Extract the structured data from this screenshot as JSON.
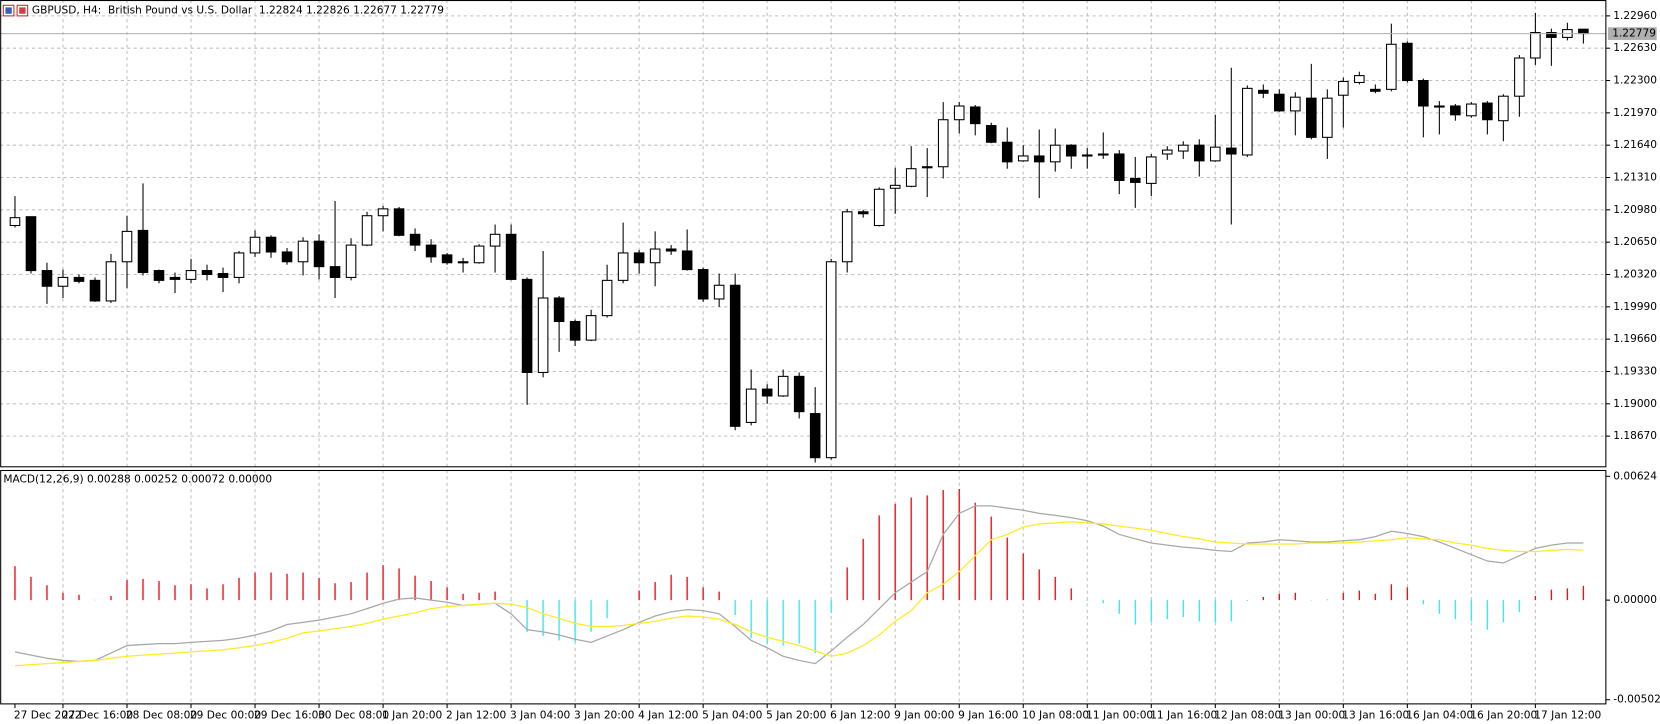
{
  "chart_data": [
    {
      "type": "candlestick",
      "title": "GBPUSD, H4:  British Pound vs U.S. Dollar  1.22824 1.22826 1.22677 1.22779",
      "categories": [
        "27 Dec 2022",
        null,
        null,
        "27 Dec 16:00",
        null,
        null,
        null,
        "28 Dec 08:00",
        null,
        null,
        null,
        "29 Dec 00:00",
        null,
        null,
        null,
        "29 Dec 16:00",
        null,
        null,
        null,
        "30 Dec 08:00",
        null,
        null,
        null,
        "1 Jan 20:00",
        null,
        null,
        null,
        "2 Jan 12:00",
        null,
        null,
        null,
        "3 Jan 04:00",
        null,
        null,
        null,
        "3 Jan 20:00",
        null,
        null,
        null,
        "4 Jan 12:00",
        null,
        null,
        null,
        "5 Jan 04:00",
        null,
        null,
        null,
        "5 Jan 20:00",
        null,
        null,
        null,
        "6 Jan 12:00",
        null,
        null,
        null,
        "9 Jan 00:00",
        null,
        null,
        null,
        "9 Jan 16:00",
        null,
        null,
        null,
        "10 Jan 08:00",
        null,
        null,
        null,
        "11 Jan 00:00",
        null,
        null,
        null,
        "11 Jan 16:00",
        null,
        null,
        null,
        "12 Jan 08:00",
        null,
        null,
        null,
        "13 Jan 00:00",
        null,
        null,
        null,
        "13 Jan 16:00",
        null,
        null,
        null,
        "16 Jan 04:00",
        null,
        null,
        null,
        "16 Jan 20:00",
        null,
        null,
        null,
        "17 Jan 12:00",
        null,
        null,
        null
      ],
      "open": [
        1.2082,
        1.2091,
        1.2036,
        1.202,
        1.2029,
        1.2026,
        1.2005,
        1.2045,
        1.2077,
        1.2036,
        1.2029,
        1.2027,
        1.2036,
        1.2033,
        1.2029,
        1.2054,
        1.207,
        1.2055,
        1.2045,
        1.2066,
        1.204,
        1.2029,
        1.2062,
        1.2092,
        1.2099,
        1.2073,
        1.2062,
        1.2052,
        1.2045,
        1.2044,
        1.2061,
        1.2073,
        1.2027,
        1.1932,
        1.2008,
        1.1984,
        1.1965,
        1.199,
        1.2026,
        1.2054,
        1.2044,
        1.2058,
        1.2056,
        1.2037,
        1.2007,
        1.2021,
        1.1881,
        1.1915,
        1.1908,
        1.1928,
        1.189,
        1.1845,
        1.2045,
        1.2096,
        1.2082,
        1.212,
        1.2122,
        1.2141,
        1.2142,
        1.219,
        1.2203,
        1.2184,
        1.2167,
        1.2148,
        1.2153,
        1.2147,
        1.2164,
        1.2154,
        1.2155,
        1.2155,
        1.213,
        1.2125,
        1.2155,
        1.2158,
        1.2164,
        1.2148,
        1.2161,
        1.2154,
        1.222,
        1.2216,
        1.2199,
        1.2212,
        1.2172,
        1.2215,
        1.2228,
        1.2221,
        1.2221,
        1.2268,
        1.223,
        1.2204,
        1.2204,
        1.2194,
        1.2207,
        1.2189,
        1.2214,
        1.2253,
        1.2279,
        1.2274,
        1.22824
      ],
      "high": [
        1.2112,
        1.2091,
        1.2044,
        1.2037,
        1.2032,
        1.2029,
        1.2053,
        1.2092,
        1.2125,
        1.2037,
        1.2034,
        1.2048,
        1.2042,
        1.2039,
        1.2056,
        1.2077,
        1.2072,
        1.2059,
        1.207,
        1.2073,
        1.2107,
        1.2069,
        1.2096,
        1.2102,
        1.2101,
        1.2079,
        1.2068,
        1.2054,
        1.2049,
        1.2063,
        1.2083,
        1.2083,
        1.2029,
        1.2056,
        1.201,
        1.1986,
        1.1996,
        1.2042,
        1.2085,
        1.2057,
        1.2076,
        1.2062,
        1.2078,
        1.2039,
        1.2033,
        1.2033,
        1.1935,
        1.192,
        1.1935,
        1.1932,
        1.1917,
        1.2048,
        1.2099,
        1.2098,
        1.2121,
        1.2141,
        1.2163,
        1.2161,
        1.2208,
        1.2208,
        1.2205,
        1.2187,
        1.2182,
        1.2164,
        1.218,
        1.2181,
        1.2165,
        1.2161,
        1.2177,
        1.2159,
        1.2152,
        1.2155,
        1.2163,
        1.2168,
        1.217,
        1.2195,
        1.2243,
        1.2225,
        1.2226,
        1.2221,
        1.2218,
        1.2247,
        1.2221,
        1.2233,
        1.2239,
        1.2226,
        1.2288,
        1.227,
        1.2232,
        1.2209,
        1.2206,
        1.2208,
        1.2209,
        1.2216,
        1.2256,
        1.2299,
        1.2283,
        1.2289,
        1.22826
      ],
      "low": [
        1.208,
        1.2033,
        1.2002,
        1.2008,
        1.2023,
        1.2004,
        1.2003,
        1.2018,
        1.2031,
        1.2023,
        1.2013,
        1.2023,
        1.2026,
        1.2014,
        1.2023,
        1.205,
        1.2049,
        1.2042,
        1.2031,
        1.2027,
        1.2008,
        1.2026,
        1.2061,
        1.2076,
        1.2071,
        1.2056,
        1.2044,
        1.2042,
        1.2034,
        1.2043,
        1.2034,
        1.2026,
        1.1899,
        1.1927,
        1.1953,
        1.1959,
        1.1964,
        1.1988,
        1.2023,
        1.2033,
        1.202,
        1.2052,
        1.2036,
        1.2004,
        1.1999,
        1.1873,
        1.1878,
        1.19,
        1.1907,
        1.1885,
        1.184,
        1.1843,
        1.2034,
        1.209,
        1.2081,
        1.2094,
        1.2121,
        1.2111,
        1.213,
        1.2176,
        1.2174,
        1.2166,
        1.214,
        1.2147,
        1.211,
        1.2137,
        1.214,
        1.214,
        1.215,
        1.2114,
        1.21,
        1.2112,
        1.2149,
        1.215,
        1.2132,
        1.2147,
        1.2083,
        1.2152,
        1.2212,
        1.2198,
        1.2174,
        1.217,
        1.215,
        1.2182,
        1.2226,
        1.2217,
        1.2219,
        1.2228,
        1.2172,
        1.2175,
        1.2189,
        1.2192,
        1.2175,
        1.2168,
        1.2193,
        1.2246,
        1.2245,
        1.2271,
        1.22677
      ],
      "close": [
        1.209,
        1.2036,
        1.202,
        1.2029,
        1.2025,
        1.2005,
        1.2045,
        1.2076,
        1.2034,
        1.2026,
        1.2027,
        1.2036,
        1.2032,
        1.2029,
        1.2054,
        1.207,
        1.2055,
        1.2045,
        1.2066,
        1.204,
        1.2029,
        1.2062,
        1.2092,
        1.2099,
        1.2072,
        1.2062,
        1.205,
        1.2044,
        1.2044,
        1.2061,
        1.2073,
        1.2027,
        1.1932,
        1.2008,
        1.1984,
        1.1965,
        1.199,
        1.2026,
        1.2054,
        1.2044,
        1.2058,
        1.2056,
        1.2037,
        1.2007,
        1.2021,
        1.1877,
        1.1915,
        1.1908,
        1.1928,
        1.1892,
        1.1845,
        1.2045,
        1.2096,
        1.2094,
        1.2119,
        1.2123,
        1.214,
        1.2142,
        1.219,
        1.2204,
        1.2186,
        1.2167,
        1.2147,
        1.2153,
        1.2147,
        1.2164,
        1.2153,
        1.2153,
        1.2154,
        1.2128,
        1.2126,
        1.2152,
        1.2159,
        1.2164,
        1.2148,
        1.2162,
        1.2155,
        1.2222,
        1.2217,
        1.2199,
        1.2213,
        1.2172,
        1.2212,
        1.2229,
        1.2235,
        1.2219,
        1.2267,
        1.223,
        1.2204,
        1.2203,
        1.2195,
        1.2206,
        1.219,
        1.2214,
        1.2253,
        1.2279,
        1.2274,
        1.2282,
        1.22779
      ],
      "last_price": 1.22779,
      "up_color": "#ffffff",
      "down_color": "#000000",
      "outline_color": "#000000",
      "ylim": [
        1.18357,
        1.23122
      ],
      "yticks": [
        {
          "value": 1.2296,
          "label": "1.22960"
        },
        {
          "value": 1.2263,
          "label": "1.22630"
        },
        {
          "value": 1.223,
          "label": "1.22300"
        },
        {
          "value": 1.2197,
          "label": "1.21970"
        },
        {
          "value": 1.2164,
          "label": "1.21640"
        },
        {
          "value": 1.2131,
          "label": "1.21310"
        },
        {
          "value": 1.2098,
          "label": "1.20980"
        },
        {
          "value": 1.2065,
          "label": "1.20650"
        },
        {
          "value": 1.2032,
          "label": "1.20320"
        },
        {
          "value": 1.1999,
          "label": "1.19990"
        },
        {
          "value": 1.1966,
          "label": "1.19660"
        },
        {
          "value": 1.1933,
          "label": "1.19330"
        },
        {
          "value": 1.19,
          "label": "1.19000"
        },
        {
          "value": 1.1867,
          "label": "1.18670"
        }
      ],
      "grid": true
    },
    {
      "type": "macd",
      "title": "MACD(12,26,9) 0.00288 0.00252 0.00072 0.00000",
      "histogram": [
        0.00171,
        0.00117,
        0.00075,
        0.00037,
        0.00027,
        1e-05,
        0.00021,
        0.00101,
        0.00107,
        0.00096,
        0.00075,
        0.0008,
        0.00059,
        0.0008,
        0.00112,
        0.00139,
        0.00139,
        0.00133,
        0.00139,
        0.00112,
        0.00085,
        0.00091,
        0.00139,
        0.00176,
        0.0016,
        0.00123,
        0.00096,
        0.00064,
        0.00032,
        0.00037,
        0.00043,
        -5e-05,
        -0.0016,
        -0.00181,
        -0.00203,
        -0.00213,
        -0.0016,
        -0.00091,
        0,
        0.00048,
        0.00091,
        0.00128,
        0.00117,
        0.00064,
        0.00043,
        -0.00075,
        -0.00192,
        -0.00219,
        -0.00229,
        -0.00219,
        -0.00267,
        -0.00064,
        0.00165,
        0.00309,
        0.00427,
        0.00485,
        0.00517,
        0.00528,
        0.00555,
        0.0056,
        0.00491,
        0.00421,
        0.00315,
        0.00235,
        0.00155,
        0.00117,
        0.00059,
        -3e-05,
        -0.00016,
        -0.00069,
        -0.00123,
        -0.00112,
        -0.00096,
        -0.00085,
        -0.00107,
        -0.00112,
        -0.00107,
        -5e-05,
        0.00016,
        0.00032,
        0.00037,
        -2e-05,
        2e-05,
        0.00037,
        0.00048,
        0.00032,
        0.0008,
        0.00064,
        -0.00021,
        -0.00069,
        -0.00096,
        -0.00107,
        -0.00149,
        -0.00112,
        -0.00059,
        0.00021,
        0.00053,
        0.00059,
        0.00072
      ],
      "macd_line": [
        -0.00261,
        -0.00277,
        -0.00293,
        -0.00304,
        -0.00309,
        -0.00304,
        -0.00267,
        -0.00229,
        -0.00224,
        -0.00219,
        -0.00219,
        -0.00213,
        -0.00208,
        -0.00203,
        -0.00192,
        -0.00176,
        -0.00155,
        -0.00123,
        -0.00112,
        -0.00101,
        -0.00085,
        -0.00069,
        -0.00043,
        -0.00016,
        5e-05,
        0.00011,
        0,
        -0.00011,
        -0.00027,
        -0.00021,
        -0.00016,
        -0.00069,
        -0.00149,
        -0.0016,
        -0.00176,
        -0.00197,
        -0.00213,
        -0.00181,
        -0.00149,
        -0.00112,
        -0.0008,
        -0.00059,
        -0.00048,
        -0.00053,
        -0.00069,
        -0.00133,
        -0.00203,
        -0.0024,
        -0.00283,
        -0.00304,
        -0.0032,
        -0.00256,
        -0.00187,
        -0.00123,
        -0.00043,
        0.00037,
        0.00091,
        0.00144,
        0.00331,
        0.00437,
        0.00475,
        0.00475,
        0.00464,
        0.00453,
        0.00437,
        0.00427,
        0.00416,
        0.004,
        0.00373,
        0.00331,
        0.00309,
        0.00288,
        0.00277,
        0.00267,
        0.00261,
        0.00251,
        0.00245,
        0.00288,
        0.00293,
        0.00304,
        0.00299,
        0.00293,
        0.00293,
        0.00299,
        0.00304,
        0.0032,
        0.00347,
        0.00336,
        0.0032,
        0.00293,
        0.00261,
        0.00229,
        0.00197,
        0.00187,
        0.00224,
        0.00261,
        0.00277,
        0.00288,
        0.00288
      ],
      "signal_line": [
        -0.00331,
        -0.00325,
        -0.0032,
        -0.00315,
        -0.00309,
        -0.00304,
        -0.00293,
        -0.00283,
        -0.00277,
        -0.00272,
        -0.00267,
        -0.00261,
        -0.00256,
        -0.00251,
        -0.0024,
        -0.00229,
        -0.00213,
        -0.00192,
        -0.00165,
        -0.00155,
        -0.00144,
        -0.00133,
        -0.00117,
        -0.00096,
        -0.0008,
        -0.00064,
        -0.00043,
        -0.00032,
        -0.00027,
        -0.00021,
        -0.00016,
        -0.00021,
        -0.00037,
        -0.00069,
        -0.00091,
        -0.00117,
        -0.00133,
        -0.00133,
        -0.00128,
        -0.00117,
        -0.00107,
        -0.00091,
        -0.0008,
        -0.00085,
        -0.00096,
        -0.00123,
        -0.0016,
        -0.00187,
        -0.00208,
        -0.00229,
        -0.00256,
        -0.00283,
        -0.00267,
        -0.00229,
        -0.00176,
        -0.00107,
        -0.00053,
        0.00037,
        0.0008,
        0.00144,
        0.00224,
        0.00304,
        0.00331,
        0.00368,
        0.00384,
        0.00389,
        0.00395,
        0.00389,
        0.00384,
        0.00373,
        0.00363,
        0.00352,
        0.00336,
        0.0032,
        0.00309,
        0.00293,
        0.00288,
        0.00283,
        0.00283,
        0.00283,
        0.00283,
        0.00288,
        0.00288,
        0.00288,
        0.00293,
        0.00299,
        0.00304,
        0.00315,
        0.00309,
        0.00304,
        0.00288,
        0.00277,
        0.00261,
        0.00251,
        0.00245,
        0.00245,
        0.00251,
        0.00256,
        0.00252
      ],
      "positive_color": "#e8141b",
      "negative_color": "#3fe6f0",
      "macd_color": "#a8a8a8",
      "signal_color": "#ffeb22",
      "ylim": [
        -0.00523,
        0.00656
      ],
      "yticks": [
        0.00624,
        {
          "value": 0,
          "label": "0.00000"
        },
        -0.00502
      ]
    }
  ]
}
